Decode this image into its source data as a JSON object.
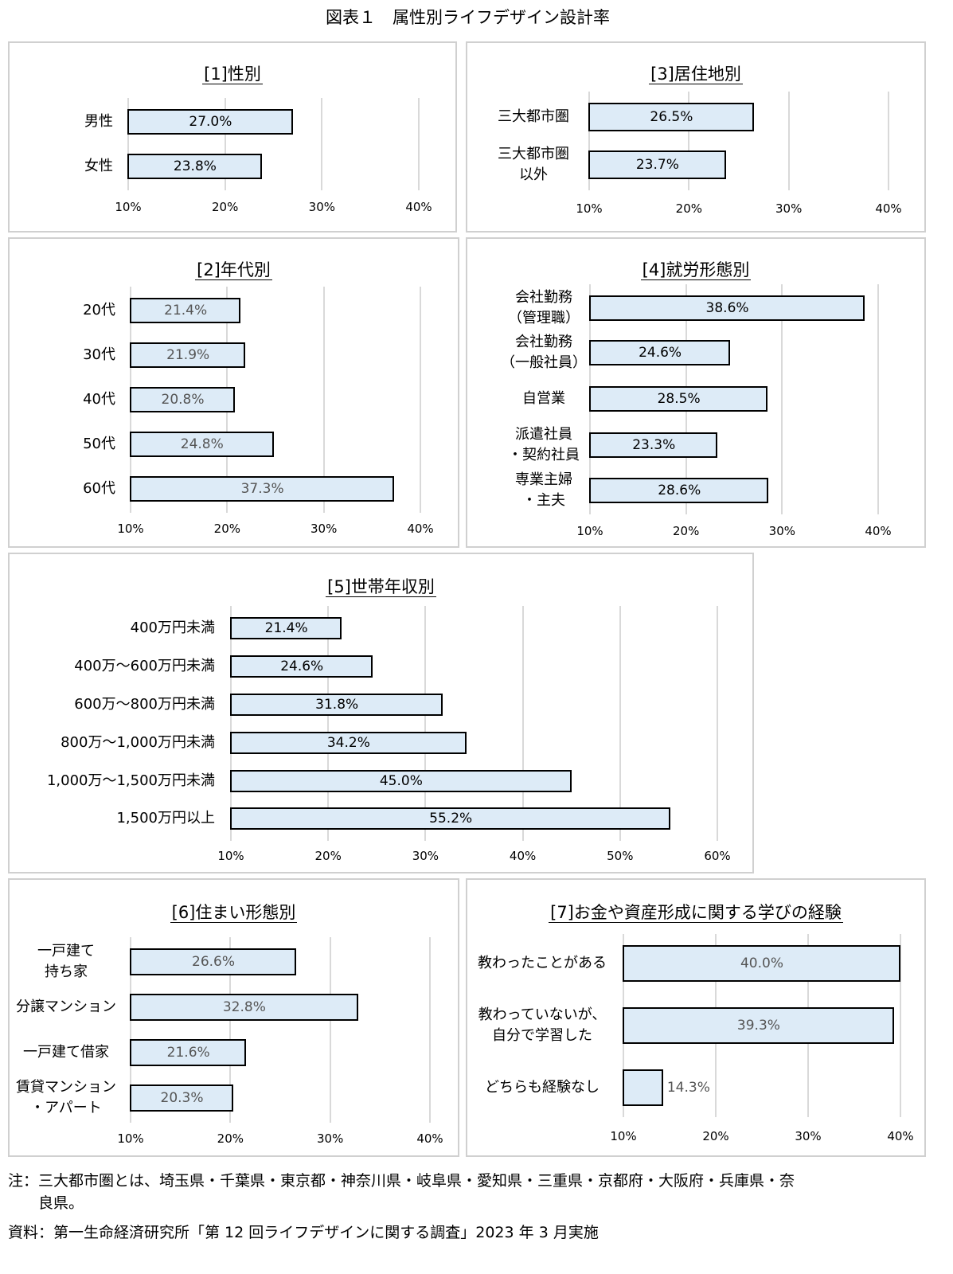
{
  "figure_title": "図表１　属性別ライフデザイン設計率",
  "bar_color": "#ddebf7",
  "chart_data": [
    {
      "type": "bar",
      "title": "[1]性別",
      "categories": [
        "男性",
        "女性"
      ],
      "values": [
        27.0,
        23.8
      ],
      "data_labels": [
        "27.0%",
        "23.8%"
      ],
      "xlim": [
        10,
        40
      ],
      "ticks": [
        "10%",
        "20%",
        "30%",
        "40%"
      ],
      "grid": true
    },
    {
      "type": "bar",
      "title": "[3]居住地別",
      "categories": [
        "三大都市圏",
        "三大都市圏\n以外"
      ],
      "values": [
        26.5,
        23.7
      ],
      "data_labels": [
        "26.5%",
        "23.7%"
      ],
      "xlim": [
        10,
        40
      ],
      "ticks": [
        "10%",
        "20%",
        "30%",
        "40%"
      ],
      "grid": true
    },
    {
      "type": "bar",
      "title": "[2]年代別",
      "categories": [
        "20代",
        "30代",
        "40代",
        "50代",
        "60代"
      ],
      "values": [
        21.4,
        21.9,
        20.8,
        24.8,
        37.3
      ],
      "data_labels": [
        "21.4%",
        "21.9%",
        "20.8%",
        "24.8%",
        "37.3%"
      ],
      "xlim": [
        10,
        40
      ],
      "ticks": [
        "10%",
        "20%",
        "30%",
        "40%"
      ],
      "grid": true
    },
    {
      "type": "bar",
      "title": "[4]就労形態別",
      "categories": [
        "会社勤務\n（管理職）",
        "会社勤務\n（一般社員）",
        "自営業",
        "派遣社員\n・契約社員",
        "専業主婦\n・主夫"
      ],
      "values": [
        38.6,
        24.6,
        28.5,
        23.3,
        28.6
      ],
      "data_labels": [
        "38.6%",
        "24.6%",
        "28.5%",
        "23.3%",
        "28.6%"
      ],
      "xlim": [
        10,
        40
      ],
      "ticks": [
        "10%",
        "20%",
        "30%",
        "40%"
      ],
      "grid": true
    },
    {
      "type": "bar",
      "title": "[5]世帯年収別",
      "categories": [
        "400万円未満",
        "400万～600万円未満",
        "600万～800万円未満",
        "800万～1,000万円未満",
        "1,000万～1,500万円未満",
        "1,500万円以上"
      ],
      "values": [
        21.4,
        24.6,
        31.8,
        34.2,
        45.0,
        55.2
      ],
      "data_labels": [
        "21.4%",
        "24.6%",
        "31.8%",
        "34.2%",
        "45.0%",
        "55.2%"
      ],
      "xlim": [
        10,
        60
      ],
      "ticks": [
        "10%",
        "20%",
        "30%",
        "40%",
        "50%",
        "60%"
      ],
      "grid": true
    },
    {
      "type": "bar",
      "title": "[6]住まい形態別",
      "categories": [
        "一戸建て\n持ち家",
        "分譲マンション",
        "一戸建て借家",
        "賃貸マンション\n・アパート"
      ],
      "values": [
        26.6,
        32.8,
        21.6,
        20.3
      ],
      "data_labels": [
        "26.6%",
        "32.8%",
        "21.6%",
        "20.3%"
      ],
      "xlim": [
        10,
        40
      ],
      "ticks": [
        "10%",
        "20%",
        "30%",
        "40%"
      ],
      "grid": true
    },
    {
      "type": "bar",
      "title": "[7]お金や資産形成に関する学びの経験",
      "categories": [
        "教わったことがある",
        "教わっていないが、\n自分で学習した",
        "どちらも経験なし"
      ],
      "values": [
        40.0,
        39.3,
        14.3
      ],
      "data_labels": [
        "40.0%",
        "39.3%",
        "14.3%"
      ],
      "xlim": [
        10,
        40
      ],
      "ticks": [
        "10%",
        "20%",
        "30%",
        "40%"
      ],
      "grid": true
    }
  ],
  "notes": {
    "note": "注：三大都市圏とは、埼玉県・千葉県・東京都・神奈川県・岐阜県・愛知県・三重県・京都府・大阪府・兵庫県・奈\n　　良県。",
    "source": "資料：第一生命経済研究所「第 12 回ライフデザインに関する調査」2023 年 3 月実施"
  }
}
